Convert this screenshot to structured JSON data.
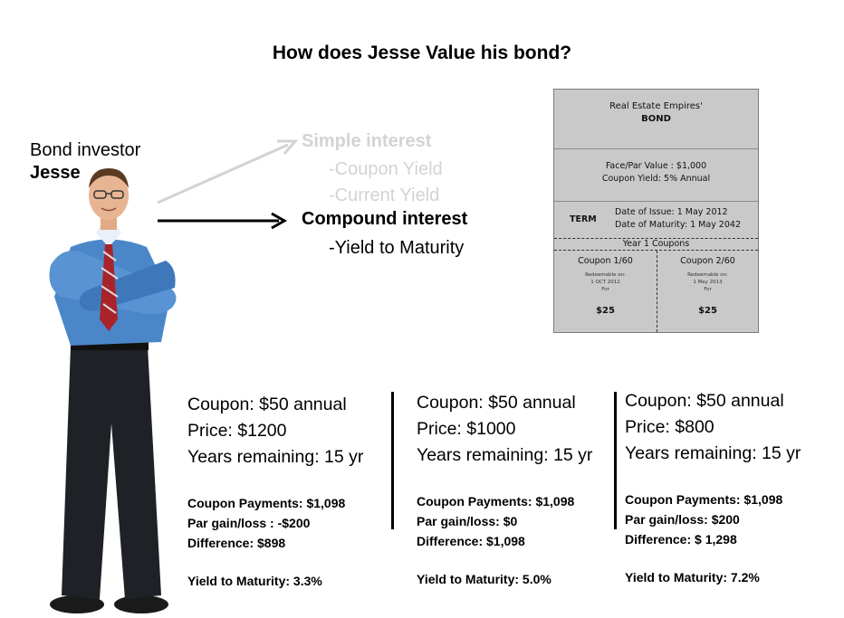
{
  "slide": {
    "title": "How does Jesse Value his bond?"
  },
  "investor": {
    "label": "Bond investor",
    "name": "Jesse"
  },
  "interest": {
    "simple": {
      "title": "Simple interest",
      "items": [
        "-Coupon Yield",
        "-Current Yield"
      ]
    },
    "compound": {
      "title": "Compound interest",
      "items": [
        "-Yield to Maturity"
      ]
    }
  },
  "bond": {
    "issuer": "Real Estate Empires'",
    "title": "BOND",
    "face_value": "Face/Par Value : $1,000",
    "coupon_yield": "Coupon Yield: 5% Annual",
    "term_label": "TERM",
    "issue_date": "Date of Issue: 1 May 2012",
    "maturity_date": "Date of Maturity: 1 May 2042",
    "coupons_header": "Year 1 Coupons",
    "coupons": [
      {
        "name": "Coupon 1/60",
        "redeemable": "Redeemable on:",
        "date": "1 OCT 2012",
        "for": "For",
        "amount": "$25"
      },
      {
        "name": "Coupon 2/60",
        "redeemable": "Redeemable on:",
        "date": "1 May 2013",
        "for": "For",
        "amount": "$25"
      }
    ]
  },
  "scenarios": [
    {
      "coupon": "Coupon: $50 annual",
      "price": "Price: $1200",
      "years": "Years remaining: 15 yr",
      "payments": "Coupon Payments: $1,098",
      "par": "Par gain/loss :  -$200",
      "difference": "Difference: $898",
      "ytm": "Yield to Maturity:  3.3%"
    },
    {
      "coupon": "Coupon: $50 annual",
      "price": "Price: $1000",
      "years": "Years remaining: 15 yr",
      "payments": "Coupon Payments: $1,098",
      "par": "Par gain/loss: $0",
      "difference": "Difference: $1,098",
      "ytm": "Yield to Maturity:  5.0%"
    },
    {
      "coupon": "Coupon: $50 annual",
      "price": "Price: $800",
      "years": "Years remaining: 15 yr",
      "payments": "Coupon Payments: $1,098",
      "par": "Par gain/loss: $200",
      "difference": "Difference: $ 1,298",
      "ytm": "Yield to Maturity: 7.2%"
    }
  ]
}
